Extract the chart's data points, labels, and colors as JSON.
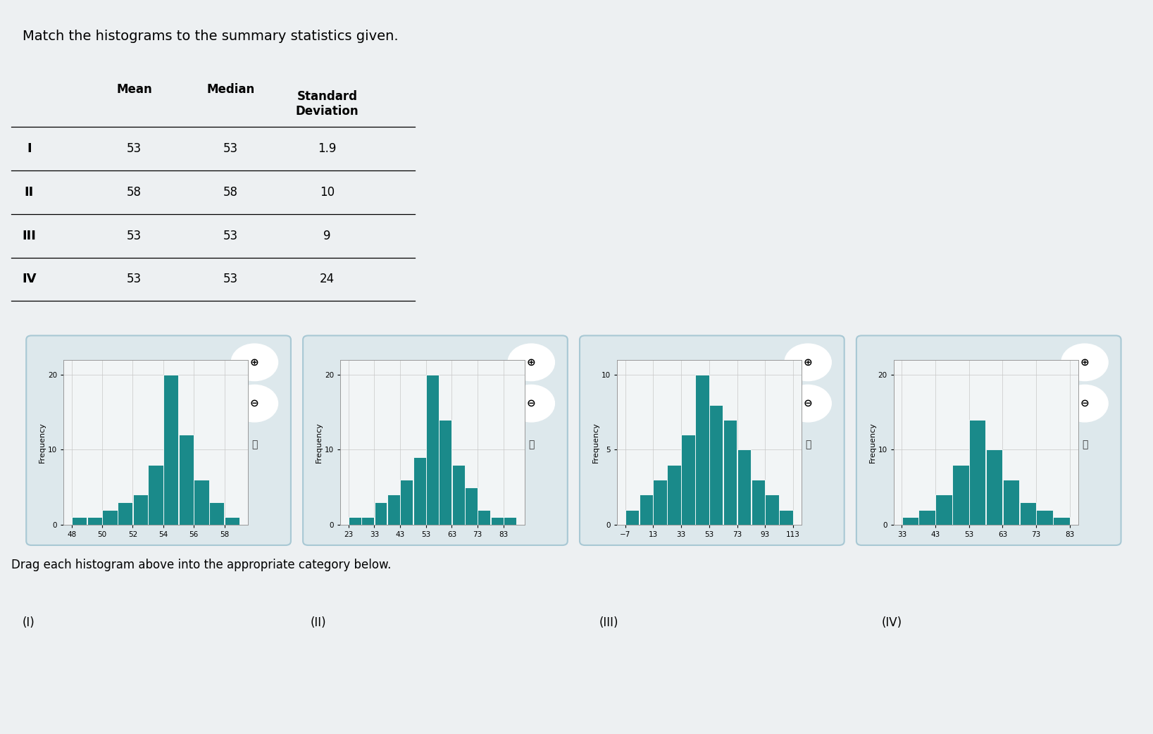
{
  "title": "Match the histograms to the summary statistics given.",
  "table_row_labels": [
    "I",
    "II",
    "III",
    "IV"
  ],
  "table_mean": [
    "53",
    "58",
    "53",
    "53"
  ],
  "table_median": [
    "53",
    "58",
    "53",
    "53"
  ],
  "table_sd": [
    "1.9",
    "10",
    "9",
    "24"
  ],
  "drag_labels": [
    "(I)",
    "(II)",
    "(III)",
    "(IV)"
  ],
  "hist1": {
    "x_ticks": [
      48,
      50,
      52,
      54,
      56,
      58
    ],
    "x_min": 47.5,
    "x_max": 59,
    "ylabel": "Frequency",
    "ylim": [
      0,
      22
    ],
    "yticks": [
      0,
      10,
      20
    ],
    "bin_width": 1,
    "bars": [
      {
        "x": 48,
        "height": 1
      },
      {
        "x": 49,
        "height": 1
      },
      {
        "x": 50,
        "height": 2
      },
      {
        "x": 51,
        "height": 3
      },
      {
        "x": 52,
        "height": 4
      },
      {
        "x": 53,
        "height": 8
      },
      {
        "x": 54,
        "height": 20
      },
      {
        "x": 55,
        "height": 12
      },
      {
        "x": 56,
        "height": 6
      },
      {
        "x": 57,
        "height": 3
      },
      {
        "x": 58,
        "height": 1
      }
    ]
  },
  "hist2": {
    "x_ticks": [
      23,
      33,
      43,
      53,
      63,
      73,
      83
    ],
    "x_min": 18,
    "x_max": 88,
    "ylabel": "Frequency",
    "ylim": [
      0,
      22
    ],
    "yticks": [
      0,
      10,
      20
    ],
    "bin_width": 5,
    "bars": [
      {
        "x": 23,
        "height": 1
      },
      {
        "x": 28,
        "height": 1
      },
      {
        "x": 33,
        "height": 3
      },
      {
        "x": 38,
        "height": 4
      },
      {
        "x": 43,
        "height": 6
      },
      {
        "x": 48,
        "height": 9
      },
      {
        "x": 53,
        "height": 20
      },
      {
        "x": 58,
        "height": 14
      },
      {
        "x": 63,
        "height": 8
      },
      {
        "x": 68,
        "height": 5
      },
      {
        "x": 73,
        "height": 2
      },
      {
        "x": 78,
        "height": 1
      },
      {
        "x": 83,
        "height": 1
      }
    ]
  },
  "hist3": {
    "x_ticks": [
      -7,
      13,
      33,
      53,
      73,
      93,
      113
    ],
    "x_min": -12,
    "x_max": 118,
    "ylabel": "Frequency",
    "ylim": [
      0,
      11
    ],
    "yticks": [
      0,
      5,
      10
    ],
    "bin_width": 10,
    "bars": [
      {
        "x": -7,
        "height": 1
      },
      {
        "x": 3,
        "height": 2
      },
      {
        "x": 13,
        "height": 3
      },
      {
        "x": 23,
        "height": 4
      },
      {
        "x": 33,
        "height": 6
      },
      {
        "x": 43,
        "height": 10
      },
      {
        "x": 53,
        "height": 8
      },
      {
        "x": 63,
        "height": 7
      },
      {
        "x": 73,
        "height": 5
      },
      {
        "x": 83,
        "height": 3
      },
      {
        "x": 93,
        "height": 2
      },
      {
        "x": 103,
        "height": 1
      },
      {
        "x": 113,
        "height": 0
      }
    ]
  },
  "hist4": {
    "x_ticks": [
      33,
      43,
      53,
      63,
      73,
      83
    ],
    "x_min": 28,
    "x_max": 88,
    "ylabel": "Frequency",
    "ylim": [
      0,
      22
    ],
    "yticks": [
      0,
      10,
      20
    ],
    "bin_width": 5,
    "bars": [
      {
        "x": 33,
        "height": 1
      },
      {
        "x": 38,
        "height": 2
      },
      {
        "x": 43,
        "height": 4
      },
      {
        "x": 48,
        "height": 8
      },
      {
        "x": 53,
        "height": 14
      },
      {
        "x": 58,
        "height": 10
      },
      {
        "x": 63,
        "height": 6
      },
      {
        "x": 68,
        "height": 3
      },
      {
        "x": 73,
        "height": 2
      },
      {
        "x": 78,
        "height": 1
      },
      {
        "x": 83,
        "height": 0
      }
    ]
  },
  "bar_color": "#1a8a8a",
  "bar_edge_color": "#ffffff",
  "outer_bg": "#dde8ec",
  "inner_bg": "#f2f5f6",
  "drag_box_color": "#c8dde5",
  "page_bg": "#edf0f2"
}
